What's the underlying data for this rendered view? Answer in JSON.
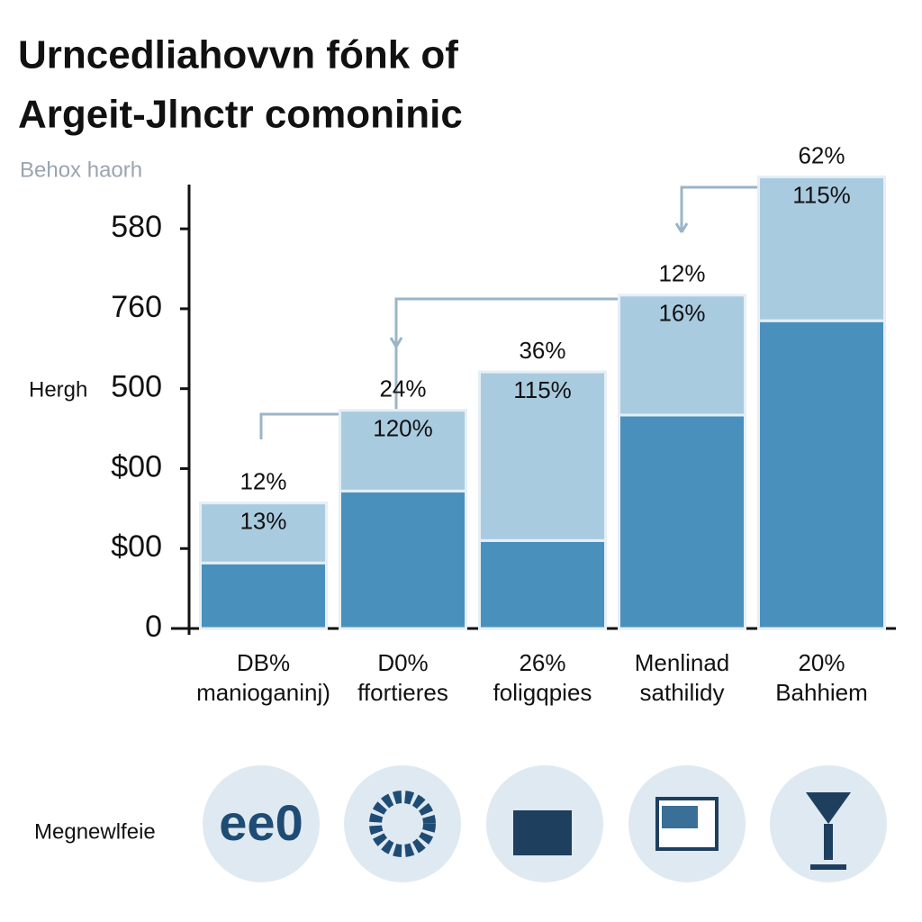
{
  "chart_data": {
    "type": "bar",
    "title": [
      "Urncedliahovvn fónk of",
      "Argeit-Jlnctr comoninic"
    ],
    "subtitle": "Behox haorh",
    "y_label": "Hergh",
    "categories": [
      "DB%",
      "D0%",
      "26%",
      "Menlinad",
      "20%"
    ],
    "category_sublabels": [
      "manioganinj)",
      "ffortieres",
      "foligqpies",
      "sathilidy",
      "Bahhiem"
    ],
    "series": [
      {
        "color": "#4a90bd",
        "values": [
          82,
          172,
          110,
          267,
          385
        ]
      },
      {
        "color": "#a9cbe0",
        "values": [
          75,
          101,
          211,
          150,
          180
        ]
      }
    ],
    "top_labels": [
      "12%",
      "24%",
      "36%",
      "12%",
      "62%"
    ],
    "inner_labels": [
      "13%",
      "120%",
      "115%",
      "16%",
      "115%"
    ],
    "ylim": [
      0,
      570
    ],
    "yticks": [
      0,
      {
        "value": 100,
        "label": "$00"
      },
      {
        "value": 200,
        "label": "$00"
      },
      {
        "value": 300,
        "label": "500"
      },
      {
        "value": 400,
        "label": "760"
      },
      {
        "value": 500,
        "label": "580"
      }
    ],
    "footer_label": "Megnewlfeie"
  }
}
